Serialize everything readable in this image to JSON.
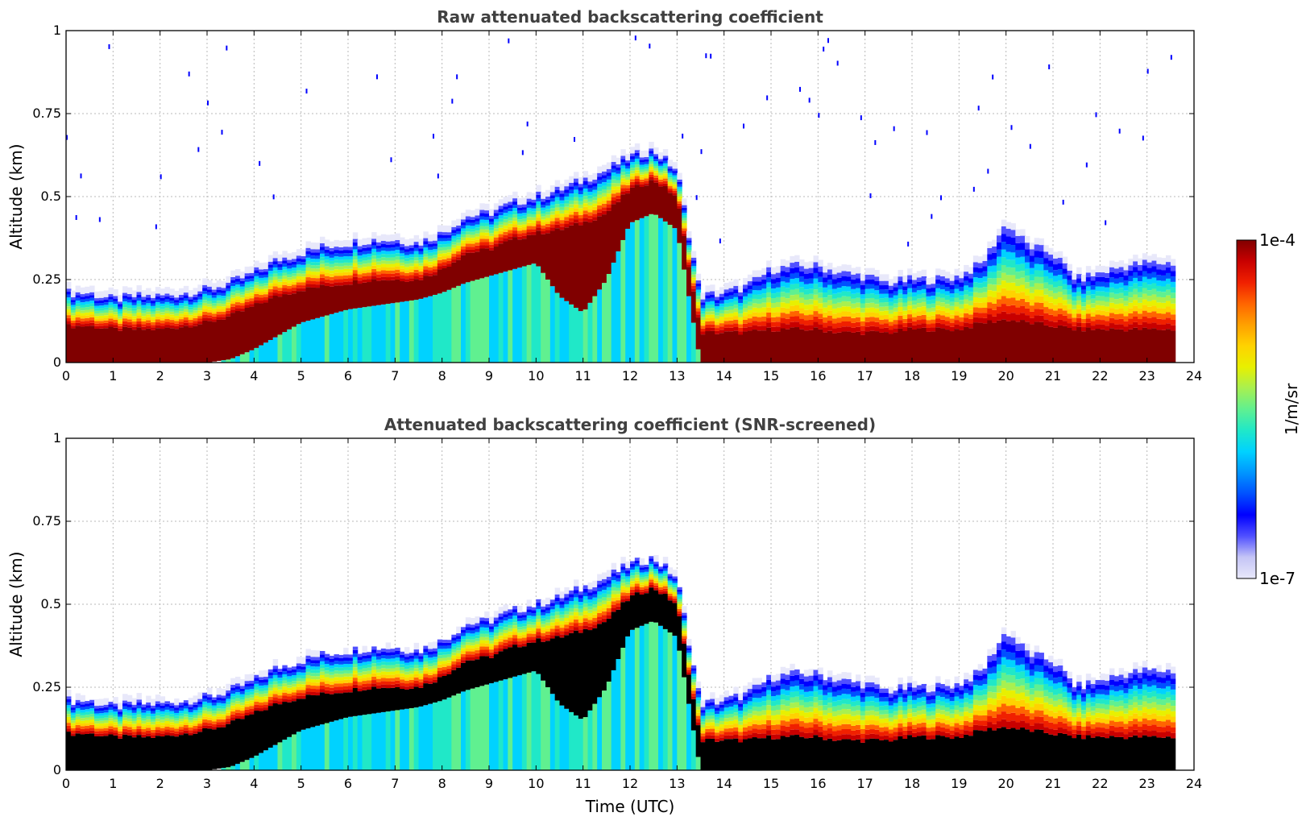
{
  "chart_data": [
    {
      "type": "heatmap",
      "title": "Raw attenuated backscattering coefficient",
      "xlabel": "",
      "ylabel": "Altitude (km)",
      "xlim": [
        0,
        24
      ],
      "ylim": [
        0,
        1
      ],
      "xticks": [
        "0",
        "1",
        "2",
        "3",
        "4",
        "5",
        "6",
        "7",
        "8",
        "9",
        "10",
        "11",
        "12",
        "13",
        "14",
        "15",
        "16",
        "17",
        "18",
        "19",
        "20",
        "21",
        "22",
        "23",
        "24"
      ],
      "yticks": [
        "0",
        "0.25",
        "0.5",
        "0.75",
        "1"
      ],
      "grid": true,
      "variant": "raw",
      "profile": {
        "time_utc": [
          0,
          0.5,
          1,
          1.5,
          2,
          2.5,
          3,
          3.5,
          4,
          4.5,
          5,
          5.5,
          6,
          6.5,
          7,
          7.5,
          8,
          8.5,
          9,
          9.5,
          10,
          10.5,
          11,
          11.5,
          12,
          12.5,
          13,
          13.5,
          14,
          14.5,
          15,
          15.5,
          16,
          16.5,
          17,
          17.5,
          18,
          18.5,
          19,
          19.5,
          20,
          20.5,
          21,
          21.5,
          22,
          22.5,
          23,
          23.6
        ],
        "layer_top_km": [
          0.21,
          0.21,
          0.19,
          0.2,
          0.2,
          0.21,
          0.22,
          0.24,
          0.27,
          0.31,
          0.33,
          0.35,
          0.36,
          0.37,
          0.37,
          0.36,
          0.39,
          0.44,
          0.45,
          0.48,
          0.5,
          0.52,
          0.55,
          0.58,
          0.62,
          0.64,
          0.58,
          0.2,
          0.21,
          0.23,
          0.28,
          0.29,
          0.29,
          0.27,
          0.26,
          0.24,
          0.25,
          0.25,
          0.26,
          0.3,
          0.42,
          0.35,
          0.33,
          0.25,
          0.27,
          0.29,
          0.3,
          0.3
        ],
        "dense_top_km": [
          0.11,
          0.11,
          0.1,
          0.1,
          0.1,
          0.11,
          0.12,
          0.14,
          0.17,
          0.2,
          0.22,
          0.23,
          0.24,
          0.25,
          0.25,
          0.25,
          0.28,
          0.33,
          0.34,
          0.37,
          0.39,
          0.4,
          0.42,
          0.45,
          0.52,
          0.55,
          0.5,
          0.09,
          0.09,
          0.09,
          0.1,
          0.1,
          0.1,
          0.09,
          0.09,
          0.09,
          0.1,
          0.1,
          0.1,
          0.12,
          0.13,
          0.12,
          0.11,
          0.1,
          0.1,
          0.1,
          0.1,
          0.1
        ],
        "dense_bottom_km": [
          0,
          0,
          0,
          0,
          0,
          0,
          0,
          0.01,
          0.04,
          0.08,
          0.12,
          0.14,
          0.16,
          0.17,
          0.18,
          0.19,
          0.21,
          0.24,
          0.26,
          0.28,
          0.3,
          0.2,
          0.15,
          0.25,
          0.42,
          0.45,
          0.4,
          0,
          0,
          0,
          0,
          0,
          0,
          0,
          0,
          0,
          0,
          0,
          0,
          0,
          0,
          0,
          0,
          0,
          0,
          0,
          0,
          0
        ]
      }
    },
    {
      "type": "heatmap",
      "title": "Attenuated backscattering coefficient (SNR-screened)",
      "xlabel": "Time (UTC)",
      "ylabel": "Altitude (km)",
      "xlim": [
        0,
        24
      ],
      "ylim": [
        0,
        1
      ],
      "xticks": [
        "0",
        "1",
        "2",
        "3",
        "4",
        "5",
        "6",
        "7",
        "8",
        "9",
        "10",
        "11",
        "12",
        "13",
        "14",
        "15",
        "16",
        "17",
        "18",
        "19",
        "20",
        "21",
        "22",
        "23",
        "24"
      ],
      "yticks": [
        "0",
        "0.25",
        "0.5",
        "0.75",
        "1"
      ],
      "grid": true,
      "variant": "screened"
    }
  ],
  "colorbar": {
    "max_label": "1e-4",
    "min_label": "1e-7",
    "unit_label": "1/m/sr",
    "colors": [
      "#e8e8fa",
      "#c4c4f6",
      "#5050ff",
      "#0000ff",
      "#0050ff",
      "#0096ff",
      "#00d2ff",
      "#20e8c8",
      "#60f090",
      "#a8f050",
      "#e8f000",
      "#ffd200",
      "#ffa000",
      "#ff6400",
      "#f02000",
      "#c80000",
      "#800000"
    ],
    "screened_saturation_color": "#000000"
  }
}
